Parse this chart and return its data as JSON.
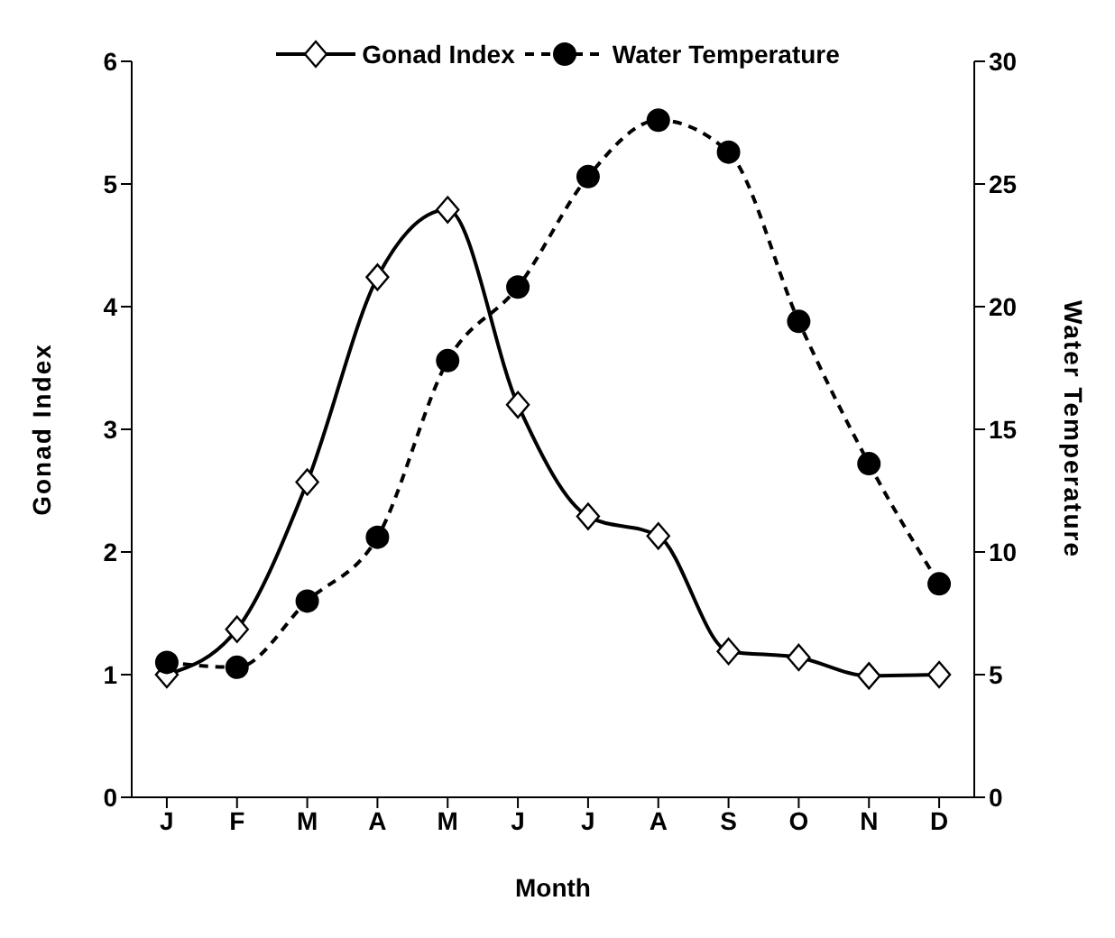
{
  "chart_data": {
    "type": "line",
    "xlabel": "Month",
    "ylabel": "Gonad Index",
    "y2label": "Water Temperature",
    "categories": [
      "J",
      "F",
      "M",
      "A",
      "M",
      "J",
      "J",
      "A",
      "S",
      "O",
      "N",
      "D"
    ],
    "series": [
      {
        "name": "Gonad Index",
        "color": "#000000",
        "marker": "diamond",
        "line_style": "solid",
        "values": [
          1.0,
          1.37,
          2.57,
          4.24,
          4.79,
          3.2,
          2.29,
          2.13,
          1.19,
          1.14,
          0.99,
          1.0
        ]
      },
      {
        "name": "Water Temperature",
        "color": "#000000",
        "marker": "circle",
        "line_style": "dashed",
        "axis": "y2",
        "values": [
          5.5,
          5.3,
          8.0,
          10.6,
          17.8,
          20.8,
          25.3,
          27.6,
          26.3,
          19.4,
          13.6,
          8.7
        ]
      }
    ],
    "ylim": [
      0,
      6
    ],
    "yticks": [
      0,
      1,
      2,
      3,
      4,
      5,
      6
    ],
    "y2lim": [
      0,
      30
    ],
    "y2ticks": [
      0,
      5,
      10,
      15,
      20,
      25,
      30
    ],
    "grid": false,
    "legend": "top"
  }
}
